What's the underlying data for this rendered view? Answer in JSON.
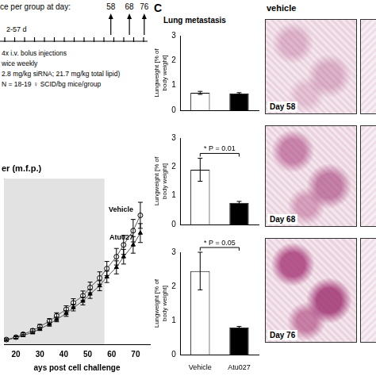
{
  "schematic": {
    "header": "ce per group at day:",
    "sacrifice_days": [
      58,
      68,
      76
    ],
    "period": "2-57 d",
    "lines": [
      "4x i.v. bolus injections",
      "wice weekly",
      "2.8 mg/kg siRNA; 21.7 mg/kg total lipid)",
      "N = 18-19 ♀ SCID/bg mice/group"
    ]
  },
  "panel_c": {
    "label": "C",
    "title": "Lung metastasis"
  },
  "histology": {
    "header": "vehicle",
    "days": [
      "Day 58",
      "Day 68",
      "Day 76"
    ]
  },
  "chart_data": [
    {
      "type": "line",
      "title": "er (m.f.p.)",
      "x_label": "ays post cell challenge",
      "x": [
        16,
        20,
        23,
        27,
        30,
        34,
        37,
        41,
        44,
        48,
        51,
        55,
        58,
        62,
        65,
        69,
        72
      ],
      "xlim": [
        15,
        76
      ],
      "xticks": [
        20,
        30,
        40,
        50,
        60,
        70
      ],
      "ylim": [
        0,
        1400
      ],
      "shaded_x": [
        15,
        57
      ],
      "tick_labels": "x",
      "grid": false,
      "series": [
        {
          "name": "Vehicle",
          "color": "#555555",
          "marker": "open_circle",
          "values": [
            40,
            60,
            85,
            115,
            150,
            195,
            240,
            295,
            350,
            410,
            480,
            560,
            640,
            740,
            840,
            960,
            1090
          ],
          "errors": [
            8,
            10,
            12,
            15,
            18,
            22,
            26,
            30,
            35,
            40,
            45,
            52,
            60,
            70,
            80,
            95,
            110
          ]
        },
        {
          "name": "Atu027",
          "color": "#555555",
          "marker": "triangle",
          "values": [
            35,
            55,
            75,
            100,
            130,
            170,
            210,
            260,
            310,
            365,
            425,
            495,
            570,
            650,
            740,
            840,
            940
          ],
          "errors": [
            6,
            8,
            10,
            12,
            14,
            17,
            20,
            24,
            28,
            32,
            37,
            42,
            48,
            55,
            62,
            70,
            80
          ]
        }
      ]
    },
    {
      "type": "bar",
      "categories": [
        "Vehicle",
        "Atu027"
      ],
      "values": [
        0.7,
        0.68
      ],
      "errors": [
        0.06,
        0.03
      ],
      "colors": [
        "#ffffff",
        "#000000"
      ],
      "ylim": [
        0,
        3
      ],
      "yticks": [
        0,
        1,
        2,
        3
      ],
      "y_label": [
        "Lungweight [% of",
        "body weight]"
      ],
      "tick_labels": "y",
      "grid": false
    },
    {
      "type": "bar",
      "categories": [
        "Vehicle",
        "Atu027"
      ],
      "values": [
        1.9,
        0.75
      ],
      "errors": [
        0.4,
        0.05
      ],
      "colors": [
        "#ffffff",
        "#000000"
      ],
      "ylim": [
        0,
        3
      ],
      "yticks": [
        0,
        1,
        2,
        3
      ],
      "y_label": [
        "Lungweight [% of",
        "body weight]"
      ],
      "annotation": "* P = 0.01",
      "tick_labels": "y",
      "grid": false
    },
    {
      "type": "bar",
      "categories": [
        "Vehicle",
        "Atu027"
      ],
      "values": [
        2.45,
        0.8
      ],
      "errors": [
        0.55,
        0.03
      ],
      "colors": [
        "#ffffff",
        "#000000"
      ],
      "ylim": [
        0,
        3
      ],
      "yticks": [
        0,
        1,
        2,
        3
      ],
      "y_label": [
        "Lungweight [% of",
        "body weight]"
      ],
      "annotation": "* P = 0.05",
      "grid": false
    }
  ]
}
